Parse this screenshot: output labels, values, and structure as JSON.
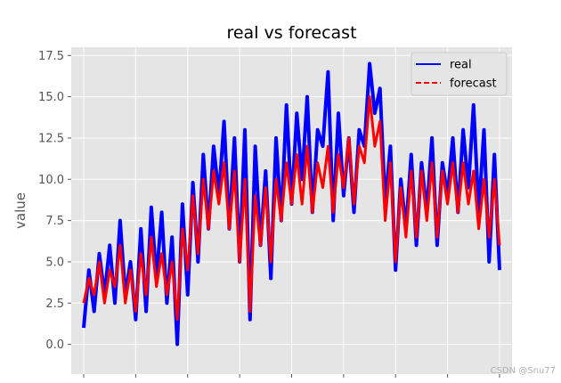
{
  "chart_data": {
    "type": "line",
    "title": "real vs forecast",
    "xlabel": "",
    "ylabel": "value",
    "ylim": [
      -1.8,
      18.0
    ],
    "xlim": [
      -1.2,
      41.2
    ],
    "yticks": [
      0.0,
      2.5,
      5.0,
      7.5,
      10.0,
      12.5,
      15.0,
      17.5
    ],
    "ytick_labels": [
      "0.0",
      "2.5",
      "5.0",
      "7.5",
      "10.0",
      "12.5",
      "15.0",
      "17.5"
    ],
    "xticks": [
      0,
      5,
      10,
      15,
      20,
      25,
      30,
      35,
      40
    ],
    "xtick_labels": [
      "",
      "",
      "",
      "",
      "",
      "",
      "",
      "",
      ""
    ],
    "grid": true,
    "legend_position": "top-right",
    "series": [
      {
        "name": "real",
        "color": "#0000ff",
        "style": "solid",
        "x": [
          0,
          0.5,
          1,
          1.5,
          2,
          2.5,
          3,
          3.5,
          4,
          4.5,
          5,
          5.5,
          6,
          6.5,
          7,
          7.5,
          8,
          8.5,
          9,
          9.5,
          10,
          10.5,
          11,
          11.5,
          12,
          12.5,
          13,
          13.5,
          14,
          14.5,
          15,
          15.5,
          16,
          16.5,
          17,
          17.5,
          18,
          18.5,
          19,
          19.5,
          20,
          20.5,
          21,
          21.5,
          22,
          22.5,
          23,
          23.5,
          24,
          24.5,
          25,
          25.5,
          26,
          26.5,
          27,
          27.5,
          28,
          28.5,
          29,
          29.5,
          30,
          30.5,
          31,
          31.5,
          32,
          32.5,
          33,
          33.5,
          34,
          34.5,
          35,
          35.5,
          36,
          36.5,
          37,
          37.5,
          38,
          38.5,
          39,
          39.5,
          40
        ],
        "values": [
          1.0,
          4.5,
          2.0,
          5.5,
          3.0,
          6.0,
          2.5,
          7.5,
          3.0,
          5.0,
          1.5,
          7.0,
          2.0,
          8.3,
          4.0,
          8.0,
          2.5,
          6.5,
          0.0,
          8.5,
          3.0,
          9.8,
          5.0,
          11.5,
          7.0,
          12.0,
          9.0,
          13.5,
          7.0,
          12.5,
          5.0,
          13.0,
          1.5,
          12.0,
          6.0,
          10.5,
          4.0,
          12.5,
          7.5,
          14.5,
          8.5,
          14.0,
          10.0,
          15.0,
          8.0,
          13.0,
          12.0,
          16.5,
          7.5,
          14.0,
          9.0,
          12.5,
          8.0,
          13.0,
          12.0,
          17.0,
          14.0,
          15.5,
          8.5,
          12.0,
          4.5,
          10.0,
          7.0,
          11.5,
          6.0,
          11.0,
          8.0,
          12.5,
          6.0,
          11.0,
          9.0,
          12.5,
          8.0,
          13.0,
          9.5,
          14.5,
          8.0,
          13.0,
          5.0,
          11.5,
          4.5
        ]
      },
      {
        "name": "forecast",
        "color": "#ff0000",
        "style": "dashed",
        "x": [
          0,
          0.5,
          1,
          1.5,
          2,
          2.5,
          3,
          3.5,
          4,
          4.5,
          5,
          5.5,
          6,
          6.5,
          7,
          7.5,
          8,
          8.5,
          9,
          9.5,
          10,
          10.5,
          11,
          11.5,
          12,
          12.5,
          13,
          13.5,
          14,
          14.5,
          15,
          15.5,
          16,
          16.5,
          17,
          17.5,
          18,
          18.5,
          19,
          19.5,
          20,
          20.5,
          21,
          21.5,
          22,
          22.5,
          23,
          23.5,
          24,
          24.5,
          25,
          25.5,
          26,
          26.5,
          27,
          27.5,
          28,
          28.5,
          29,
          29.5,
          30,
          30.5,
          31,
          31.5,
          32,
          32.5,
          33,
          33.5,
          34,
          34.5,
          35,
          35.5,
          36,
          36.5,
          37,
          37.5,
          38,
          38.5,
          39,
          39.5,
          40
        ],
        "values": [
          2.5,
          4.0,
          3.0,
          5.0,
          2.5,
          4.5,
          3.5,
          6.0,
          2.5,
          4.5,
          2.0,
          5.5,
          3.0,
          6.5,
          3.5,
          5.5,
          3.0,
          5.0,
          1.5,
          7.0,
          4.5,
          9.0,
          5.5,
          10.0,
          7.0,
          10.5,
          8.5,
          11.0,
          7.0,
          10.5,
          5.0,
          10.0,
          2.0,
          9.0,
          6.0,
          9.5,
          5.0,
          10.0,
          7.5,
          11.0,
          8.5,
          11.5,
          8.5,
          12.0,
          8.0,
          11.0,
          9.5,
          12.0,
          8.0,
          11.5,
          9.5,
          12.5,
          8.5,
          12.0,
          11.0,
          15.0,
          12.0,
          13.5,
          7.5,
          11.0,
          5.0,
          9.5,
          6.5,
          10.5,
          6.5,
          10.5,
          7.5,
          11.0,
          6.5,
          10.5,
          8.5,
          11.0,
          8.0,
          11.0,
          8.5,
          10.5,
          7.0,
          10.0,
          6.5,
          10.0,
          6.0
        ]
      }
    ]
  },
  "watermark": "CSDN @Snu77"
}
